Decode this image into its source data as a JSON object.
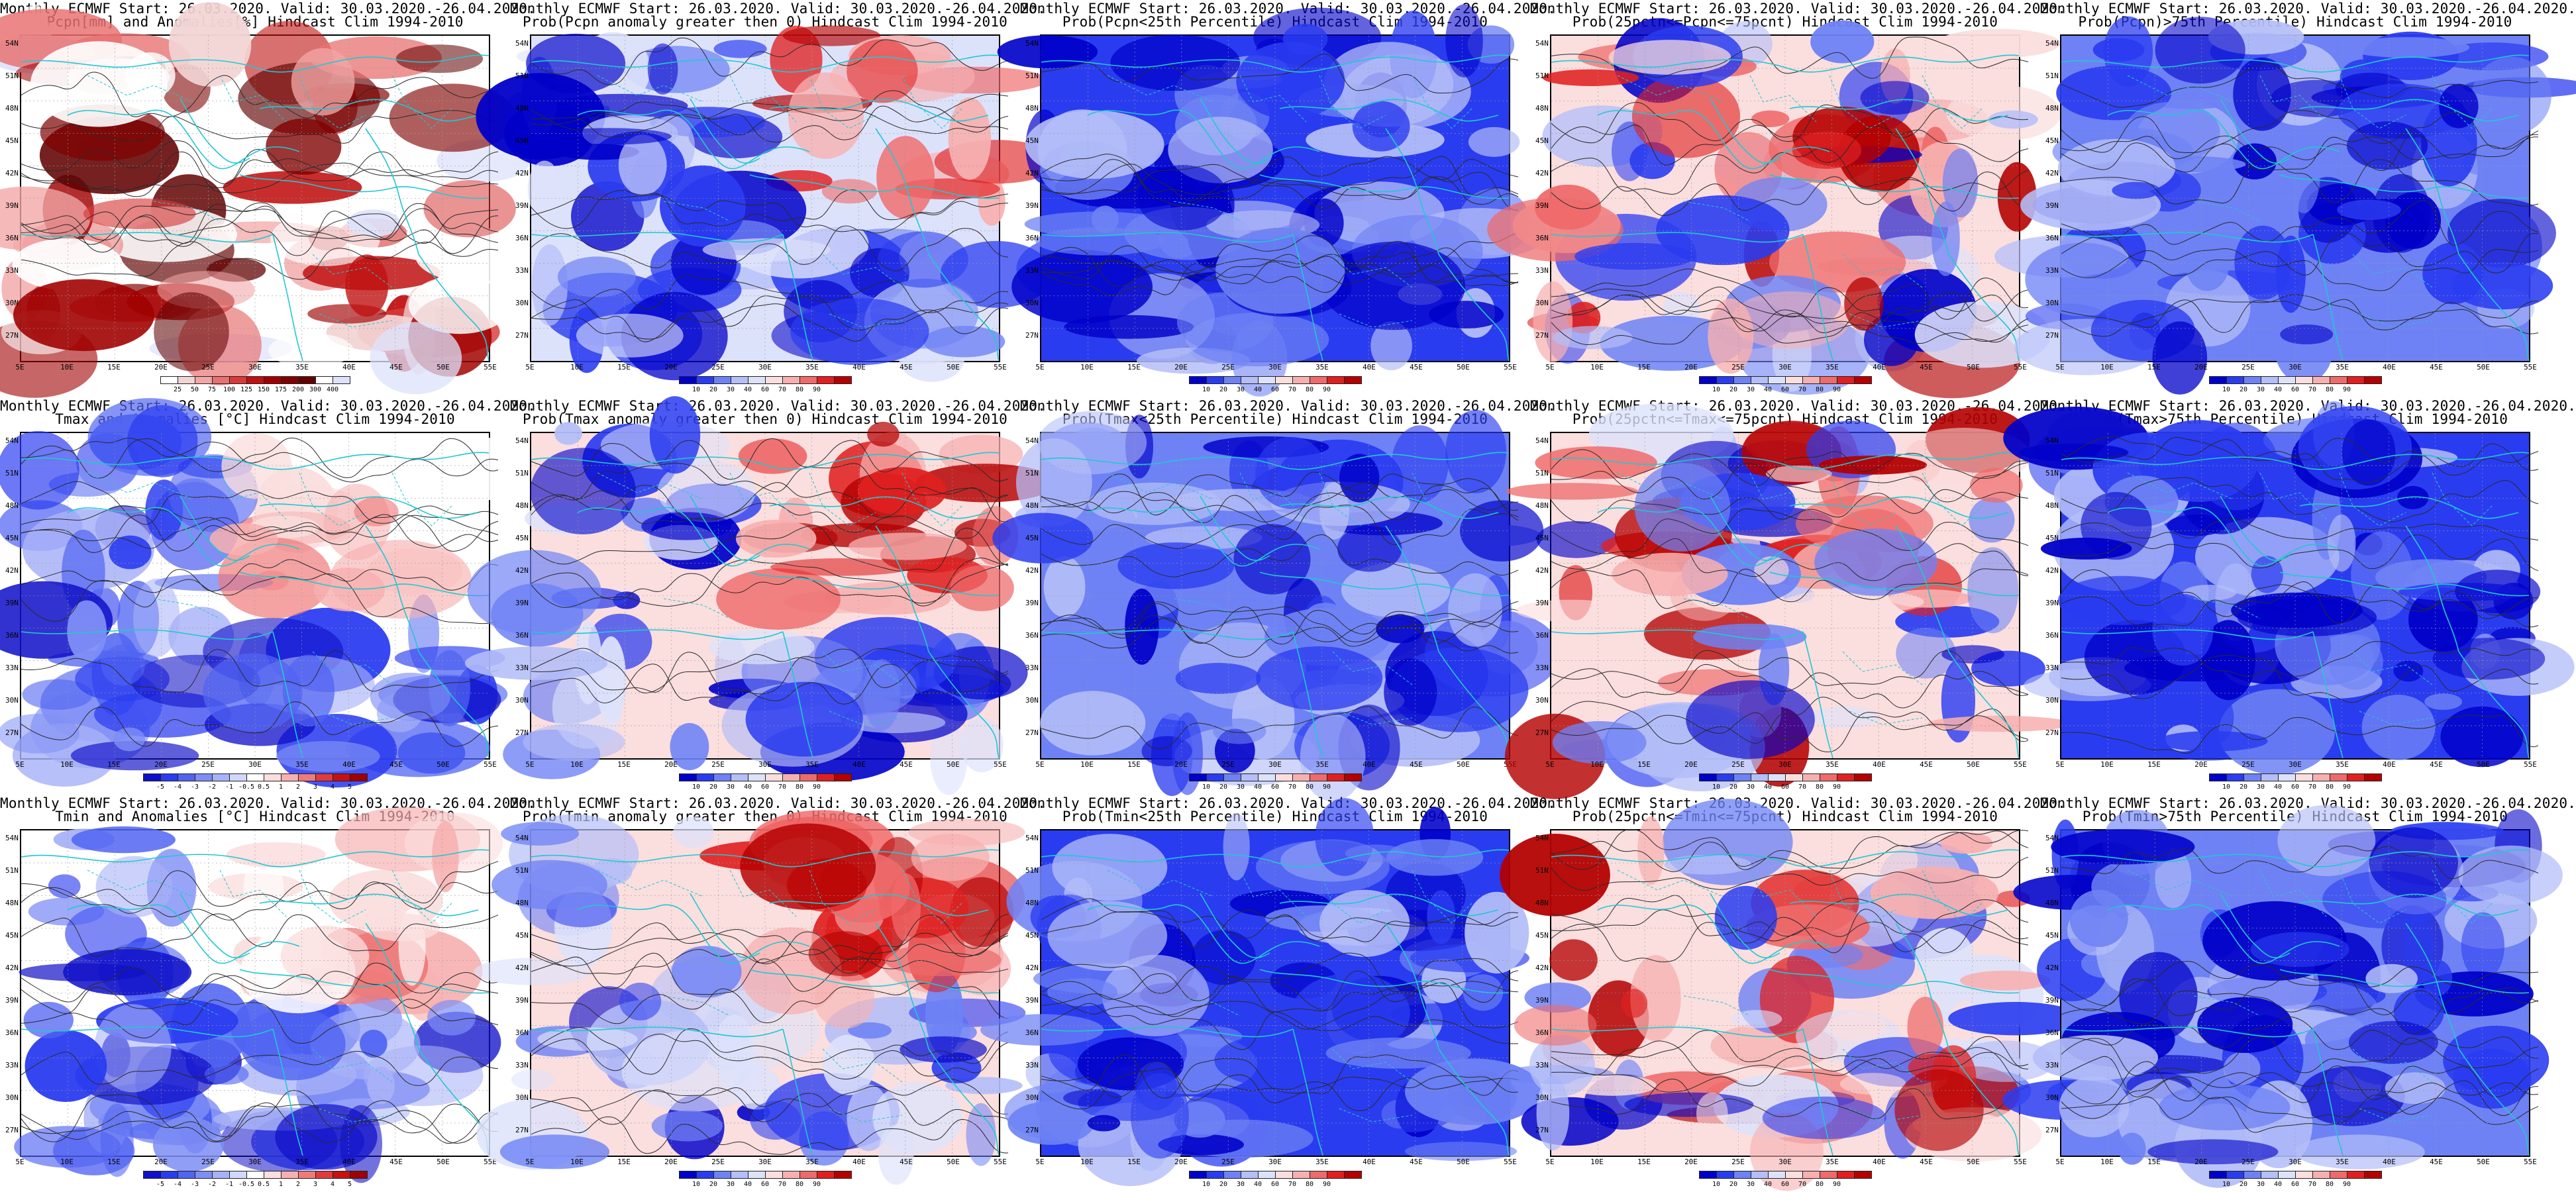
{
  "panels": [
    {
      "row": 0,
      "col": 0,
      "line1": "Monthly ECMWF Start: 26.03.2020. Valid: 30.03.2020.-26.04.2020.",
      "line2": "Pcpn[mm] and Anomalies[%] Hindcast Clim 1994-2010",
      "palette": "anom_pcpn",
      "labels": [
        "25",
        "50",
        "75",
        "100",
        "125",
        "150",
        "175",
        "200",
        "300",
        "400"
      ]
    },
    {
      "row": 0,
      "col": 1,
      "line1": "Monthly ECMWF Start: 26.03.2020. Valid: 30.03.2020.-26.04.2020.",
      "line2": "Prob(Pcpn anomaly greater then 0) Hindcast Clim 1994-2010",
      "palette": "prob",
      "labels": [
        "10",
        "20",
        "30",
        "40",
        "60",
        "70",
        "80",
        "90"
      ]
    },
    {
      "row": 0,
      "col": 2,
      "line1": "Monthly ECMWF Start: 26.03.2020. Valid: 30.03.2020.-26.04.2020.",
      "line2": "Prob(Pcpn<25th Percentile) Hindcast Clim 1994-2010",
      "palette": "prob",
      "labels": [
        "10",
        "20",
        "30",
        "40",
        "60",
        "70",
        "80",
        "90"
      ]
    },
    {
      "row": 0,
      "col": 3,
      "line1": "Monthly ECMWF Start: 26.03.2020. Valid: 30.03.2020.-26.04.2020.",
      "line2": "Prob(25pctn<=Pcpn<=75pcnt) Hindcast Clim 1994-2010",
      "palette": "prob",
      "labels": [
        "10",
        "20",
        "30",
        "40",
        "60",
        "70",
        "80",
        "90"
      ]
    },
    {
      "row": 0,
      "col": 4,
      "line1": "Monthly ECMWF Start: 26.03.2020. Valid: 30.03.2020.-26.04.2020.",
      "line2": "Prob(Pcpn)>75th Percentile) Hindcast Clim 1994-2010",
      "palette": "prob",
      "labels": [
        "10",
        "20",
        "30",
        "40",
        "60",
        "70",
        "80",
        "90"
      ]
    },
    {
      "row": 1,
      "col": 0,
      "line1": "Monthly ECMWF Start: 26.03.2020. Valid: 30.03.2020.-26.04.2020.",
      "line2": "Tmax and Anomalies [°C] Hindcast Clim 1994-2010",
      "palette": "anom_t",
      "labels": [
        "-5",
        "-4",
        "-3",
        "-2",
        "-1",
        "-0.5",
        "0.5",
        "1",
        "2",
        "3",
        "4",
        "5"
      ]
    },
    {
      "row": 1,
      "col": 1,
      "line1": "Monthly ECMWF Start: 26.03.2020. Valid: 30.03.2020.-26.04.2020.",
      "line2": "Prob(Tmax anomaly greater then 0) Hindcast Clim 1994-2010",
      "palette": "prob",
      "labels": [
        "10",
        "20",
        "30",
        "40",
        "60",
        "70",
        "80",
        "90"
      ]
    },
    {
      "row": 1,
      "col": 2,
      "line1": "Monthly ECMWF Start: 26.03.2020. Valid: 30.03.2020.-26.04.2020.",
      "line2": "Prob(Tmax<25th Percentile) Hindcast Clim 1994-2010",
      "palette": "prob",
      "labels": [
        "10",
        "20",
        "30",
        "40",
        "60",
        "70",
        "80",
        "90"
      ]
    },
    {
      "row": 1,
      "col": 3,
      "line1": "Monthly ECMWF Start: 26.03.2020. Valid: 30.03.2020.-26.04.2020.",
      "line2": "Prob(25pctn<=Tmax<=75pcnt) Hindcast Clim 1994-2010",
      "palette": "prob",
      "labels": [
        "10",
        "20",
        "30",
        "40",
        "60",
        "70",
        "80",
        "90"
      ]
    },
    {
      "row": 1,
      "col": 4,
      "line1": "Monthly ECMWF Start: 26.03.2020. Valid: 30.03.2020.-26.04.2020.",
      "line2": "Prob(Tmax>75th Percentile) Hindcast Clim 1994-2010",
      "palette": "prob",
      "labels": [
        "10",
        "20",
        "30",
        "40",
        "60",
        "70",
        "80",
        "90"
      ]
    },
    {
      "row": 2,
      "col": 0,
      "line1": "Monthly ECMWF Start: 26.03.2020. Valid: 30.03.2020.-26.04.2020.",
      "line2": "Tmin and Anomalies [°C] Hindcast Clim 1994-2010",
      "palette": "anom_t",
      "labels": [
        "-5",
        "-4",
        "-3",
        "-2",
        "-1",
        "-0.5",
        "0.5",
        "1",
        "2",
        "3",
        "4",
        "5"
      ]
    },
    {
      "row": 2,
      "col": 1,
      "line1": "Monthly ECMWF Start: 26.03.2020. Valid: 30.03.2020.-26.04.2020.",
      "line2": "Prob(Tmin anomaly greater then 0) Hindcast Clim 1994-2010",
      "palette": "prob",
      "labels": [
        "10",
        "20",
        "30",
        "40",
        "60",
        "70",
        "80",
        "90"
      ]
    },
    {
      "row": 2,
      "col": 2,
      "line1": "Monthly ECMWF Start: 26.03.2020. Valid: 30.03.2020.-26.04.2020.",
      "line2": "Prob(Tmin<25th Percentile) Hindcast Clim 1994-2010",
      "palette": "prob",
      "labels": [
        "10",
        "20",
        "30",
        "40",
        "60",
        "70",
        "80",
        "90"
      ]
    },
    {
      "row": 2,
      "col": 3,
      "line1": "Monthly ECMWF Start: 26.03.2020. Valid: 30.03.2020.-26.04.2020.",
      "line2": "Prob(25pctn<=Tmin<=75pcnt) Hindcast Clim 1994-2010",
      "palette": "prob",
      "labels": [
        "10",
        "20",
        "30",
        "40",
        "60",
        "70",
        "80",
        "90"
      ]
    },
    {
      "row": 2,
      "col": 4,
      "line1": "Monthly ECMWF Start: 26.03.2020. Valid: 30.03.2020.-26.04.2020.",
      "line2": "Prob(Tmin>75th Percentile) Hindcast Clim 1994-2010",
      "palette": "prob",
      "labels": [
        "10",
        "20",
        "30",
        "40",
        "60",
        "70",
        "80",
        "90"
      ]
    }
  ],
  "lat_labels": [
    "54N",
    "51N",
    "48N",
    "45N",
    "42N",
    "39N",
    "36N",
    "33N",
    "30N",
    "27N"
  ],
  "lon_labels": [
    "5E",
    "10E",
    "15E",
    "20E",
    "25E",
    "30E",
    "35E",
    "40E",
    "45E",
    "50E",
    "55E"
  ],
  "palettes": {
    "prob": [
      "#0000c8",
      "#2a3cf0",
      "#6e82f5",
      "#b4bef8",
      "#dde2fb",
      "#fbdede",
      "#f7b0b0",
      "#ef6a6a",
      "#e02020",
      "#b40000"
    ],
    "anom_pcpn": [
      "#ffffff",
      "#f2d4d4",
      "#f2a6a6",
      "#e87070",
      "#d83a3a",
      "#c01010",
      "#a00000",
      "#800000",
      "#600000",
      "#ffffff",
      "#dde2fb"
    ],
    "anom_t": [
      "#1010c8",
      "#2a3cf0",
      "#5064f2",
      "#7e8ef5",
      "#a8b2f8",
      "#d2d8fb",
      "#ffffff",
      "#fbdede",
      "#f7b0b0",
      "#ef7a7a",
      "#e03a3a",
      "#c81010",
      "#a00000"
    ]
  },
  "colors": {
    "coast": "#20c8d2",
    "contour": "#2a2a2a",
    "frame": "#000000"
  }
}
